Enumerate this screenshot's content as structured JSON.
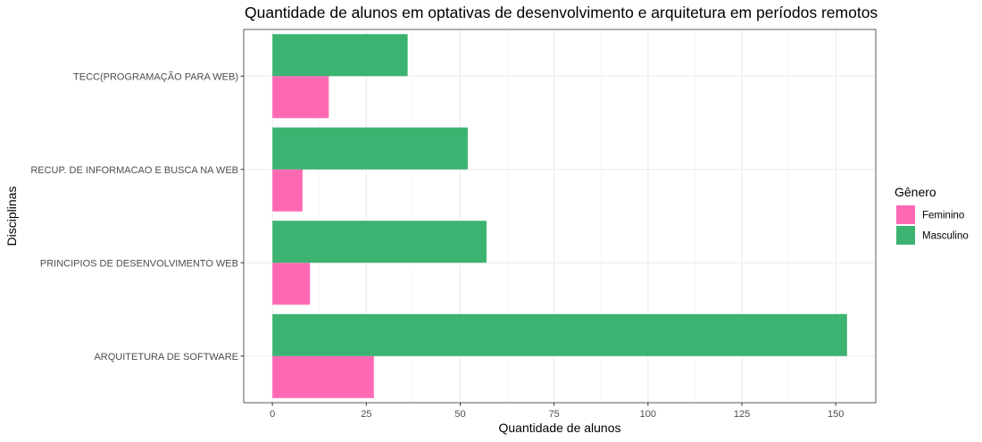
{
  "chart_data": {
    "type": "bar",
    "orientation": "horizontal",
    "title": "Quantidade de alunos em optativas de desenvolvimento e arquitetura em períodos remotos",
    "xlabel": "Quantidade de alunos",
    "ylabel": "Disciplinas",
    "xlim": [
      -7.65,
      160.65
    ],
    "x_ticks": [
      0,
      25,
      50,
      75,
      100,
      125,
      150
    ],
    "x_tick_labels": [
      "0",
      "25",
      "50",
      "75",
      "100",
      "125",
      "150"
    ],
    "categories": [
      "ARQUITETURA DE SOFTWARE",
      "PRINCIPIOS DE DESENVOLVIMENTO WEB",
      "RECUP. DE INFORMACAO E BUSCA NA WEB",
      "TECC(PROGRAMAÇÃO PARA WEB)"
    ],
    "series": [
      {
        "name": "Feminino",
        "color": "#FF69B4",
        "values": [
          27,
          10,
          8,
          15
        ]
      },
      {
        "name": "Masculino",
        "color": "#3CB371",
        "values": [
          153,
          57,
          52,
          36
        ]
      }
    ],
    "legend": {
      "title": "Gênero",
      "placement": "right"
    },
    "grid": true
  }
}
